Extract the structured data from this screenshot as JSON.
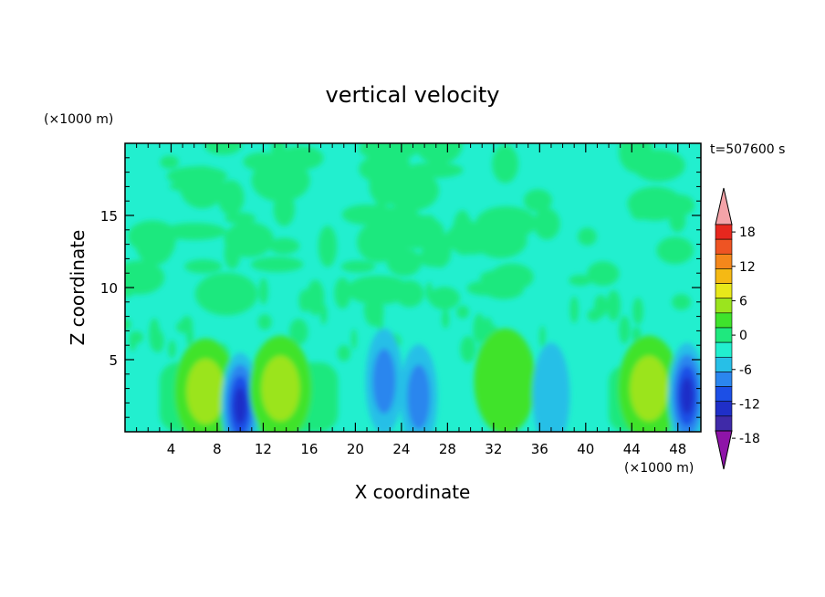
{
  "chart_data": {
    "type": "heatmap",
    "title": "vertical velocity",
    "xlabel": "X coordinate",
    "ylabel": "Z coordinate",
    "x_unit": "(×1000 m)",
    "y_unit": "(×1000 m)",
    "time_label": "t=507600 s",
    "xlim": [
      0,
      50
    ],
    "ylim": [
      0,
      20
    ],
    "x_ticks": [
      "4",
      "8",
      "12",
      "16",
      "20",
      "24",
      "28",
      "32",
      "36",
      "40",
      "44",
      "48"
    ],
    "y_ticks": [
      "5",
      "10",
      "15"
    ],
    "colorbar": {
      "levels": [
        -21,
        -18,
        -15,
        -12,
        -9,
        -6,
        -3,
        0,
        3,
        6,
        9,
        12,
        15,
        18,
        21
      ],
      "labels": [
        "18",
        "12",
        "6",
        "0",
        "-6",
        "-12",
        "-18"
      ],
      "colors": [
        "#6a1b9a",
        "#3f2aa8",
        "#1f2fc8",
        "#1c4fe6",
        "#2b86ee",
        "#27bfe7",
        "#22efcf",
        "#1fe87e",
        "#3fe32c",
        "#9be41e",
        "#e8e81a",
        "#f5b914",
        "#f4871b",
        "#ee5423",
        "#e7271e",
        "#f4a3a8"
      ],
      "over_color": "#f4a3a8",
      "under_color": "#8e14a8"
    },
    "features": [
      {
        "x": 7.0,
        "z": 2.8,
        "value": 7,
        "note": "updraft"
      },
      {
        "x": 10.0,
        "z": 1.8,
        "value": -12,
        "note": "downdraft"
      },
      {
        "x": 13.5,
        "z": 3.0,
        "value": 8,
        "note": "updraft"
      },
      {
        "x": 22.5,
        "z": 3.5,
        "value": -8,
        "note": "downdraft"
      },
      {
        "x": 25.5,
        "z": 2.4,
        "value": -8,
        "note": "downdraft"
      },
      {
        "x": 33.0,
        "z": 3.5,
        "value": 3,
        "note": "updraft"
      },
      {
        "x": 37.0,
        "z": 2.5,
        "value": -5,
        "note": "downdraft"
      },
      {
        "x": 45.5,
        "z": 3.0,
        "value": 8,
        "note": "updraft"
      },
      {
        "x": 48.8,
        "z": 2.5,
        "value": -12,
        "note": "downdraft"
      }
    ],
    "grid": false
  }
}
